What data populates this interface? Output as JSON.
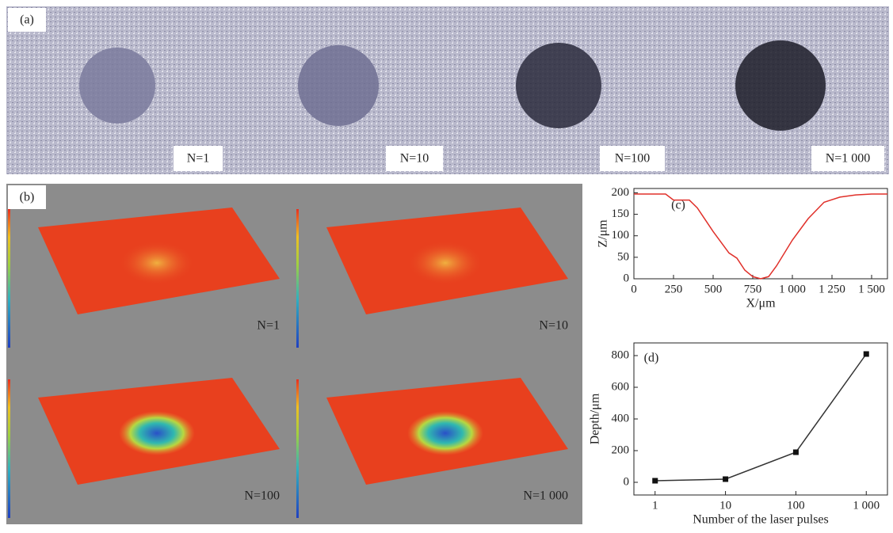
{
  "panels": {
    "a": {
      "label": "(a)",
      "images": [
        {
          "label": "N=1"
        },
        {
          "label": "N=10"
        },
        {
          "label": "N=100"
        },
        {
          "label": "N=1 000"
        }
      ]
    },
    "b": {
      "label": "(b)",
      "images": [
        {
          "label": "N=1"
        },
        {
          "label": "N=10"
        },
        {
          "label": "N=100"
        },
        {
          "label": "N=1 000"
        }
      ]
    }
  },
  "chart_data": [
    {
      "type": "line",
      "panel_label": "(c)",
      "xlabel": "X/μm",
      "ylabel": "Z/μm",
      "color": "#e0302a",
      "x": [
        0,
        200,
        250,
        350,
        400,
        500,
        600,
        650,
        700,
        750,
        800,
        850,
        900,
        1000,
        1100,
        1200,
        1300,
        1400,
        1500,
        1600
      ],
      "values": [
        197,
        197,
        183,
        183,
        165,
        110,
        60,
        48,
        20,
        5,
        0,
        5,
        30,
        90,
        140,
        178,
        190,
        195,
        197,
        197
      ],
      "xlim": [
        0,
        1600
      ],
      "ylim": [
        0,
        210
      ],
      "xticks": [
        0,
        250,
        500,
        750,
        {
          "value": 1000,
          "label": "1 000"
        },
        {
          "value": 1250,
          "label": "1 250"
        },
        {
          "value": 1500,
          "label": "1 500"
        }
      ],
      "yticks": [
        0,
        50,
        100,
        150,
        200
      ],
      "markers": false
    },
    {
      "type": "line",
      "panel_label": "(d)",
      "xlabel": "Number of the laser pulses",
      "ylabel": "Depth/μm",
      "color": "#333333",
      "x": [
        1,
        10,
        100,
        1000
      ],
      "values": [
        10,
        20,
        190,
        810
      ],
      "xlim": [
        0.5,
        2000
      ],
      "ylim": [
        -80,
        880
      ],
      "xscale": "log",
      "xticks": [
        1,
        10,
        100,
        {
          "value": 1000,
          "label": "1 000"
        }
      ],
      "yticks": [
        0,
        200,
        400,
        600,
        800
      ],
      "markers": true
    }
  ]
}
